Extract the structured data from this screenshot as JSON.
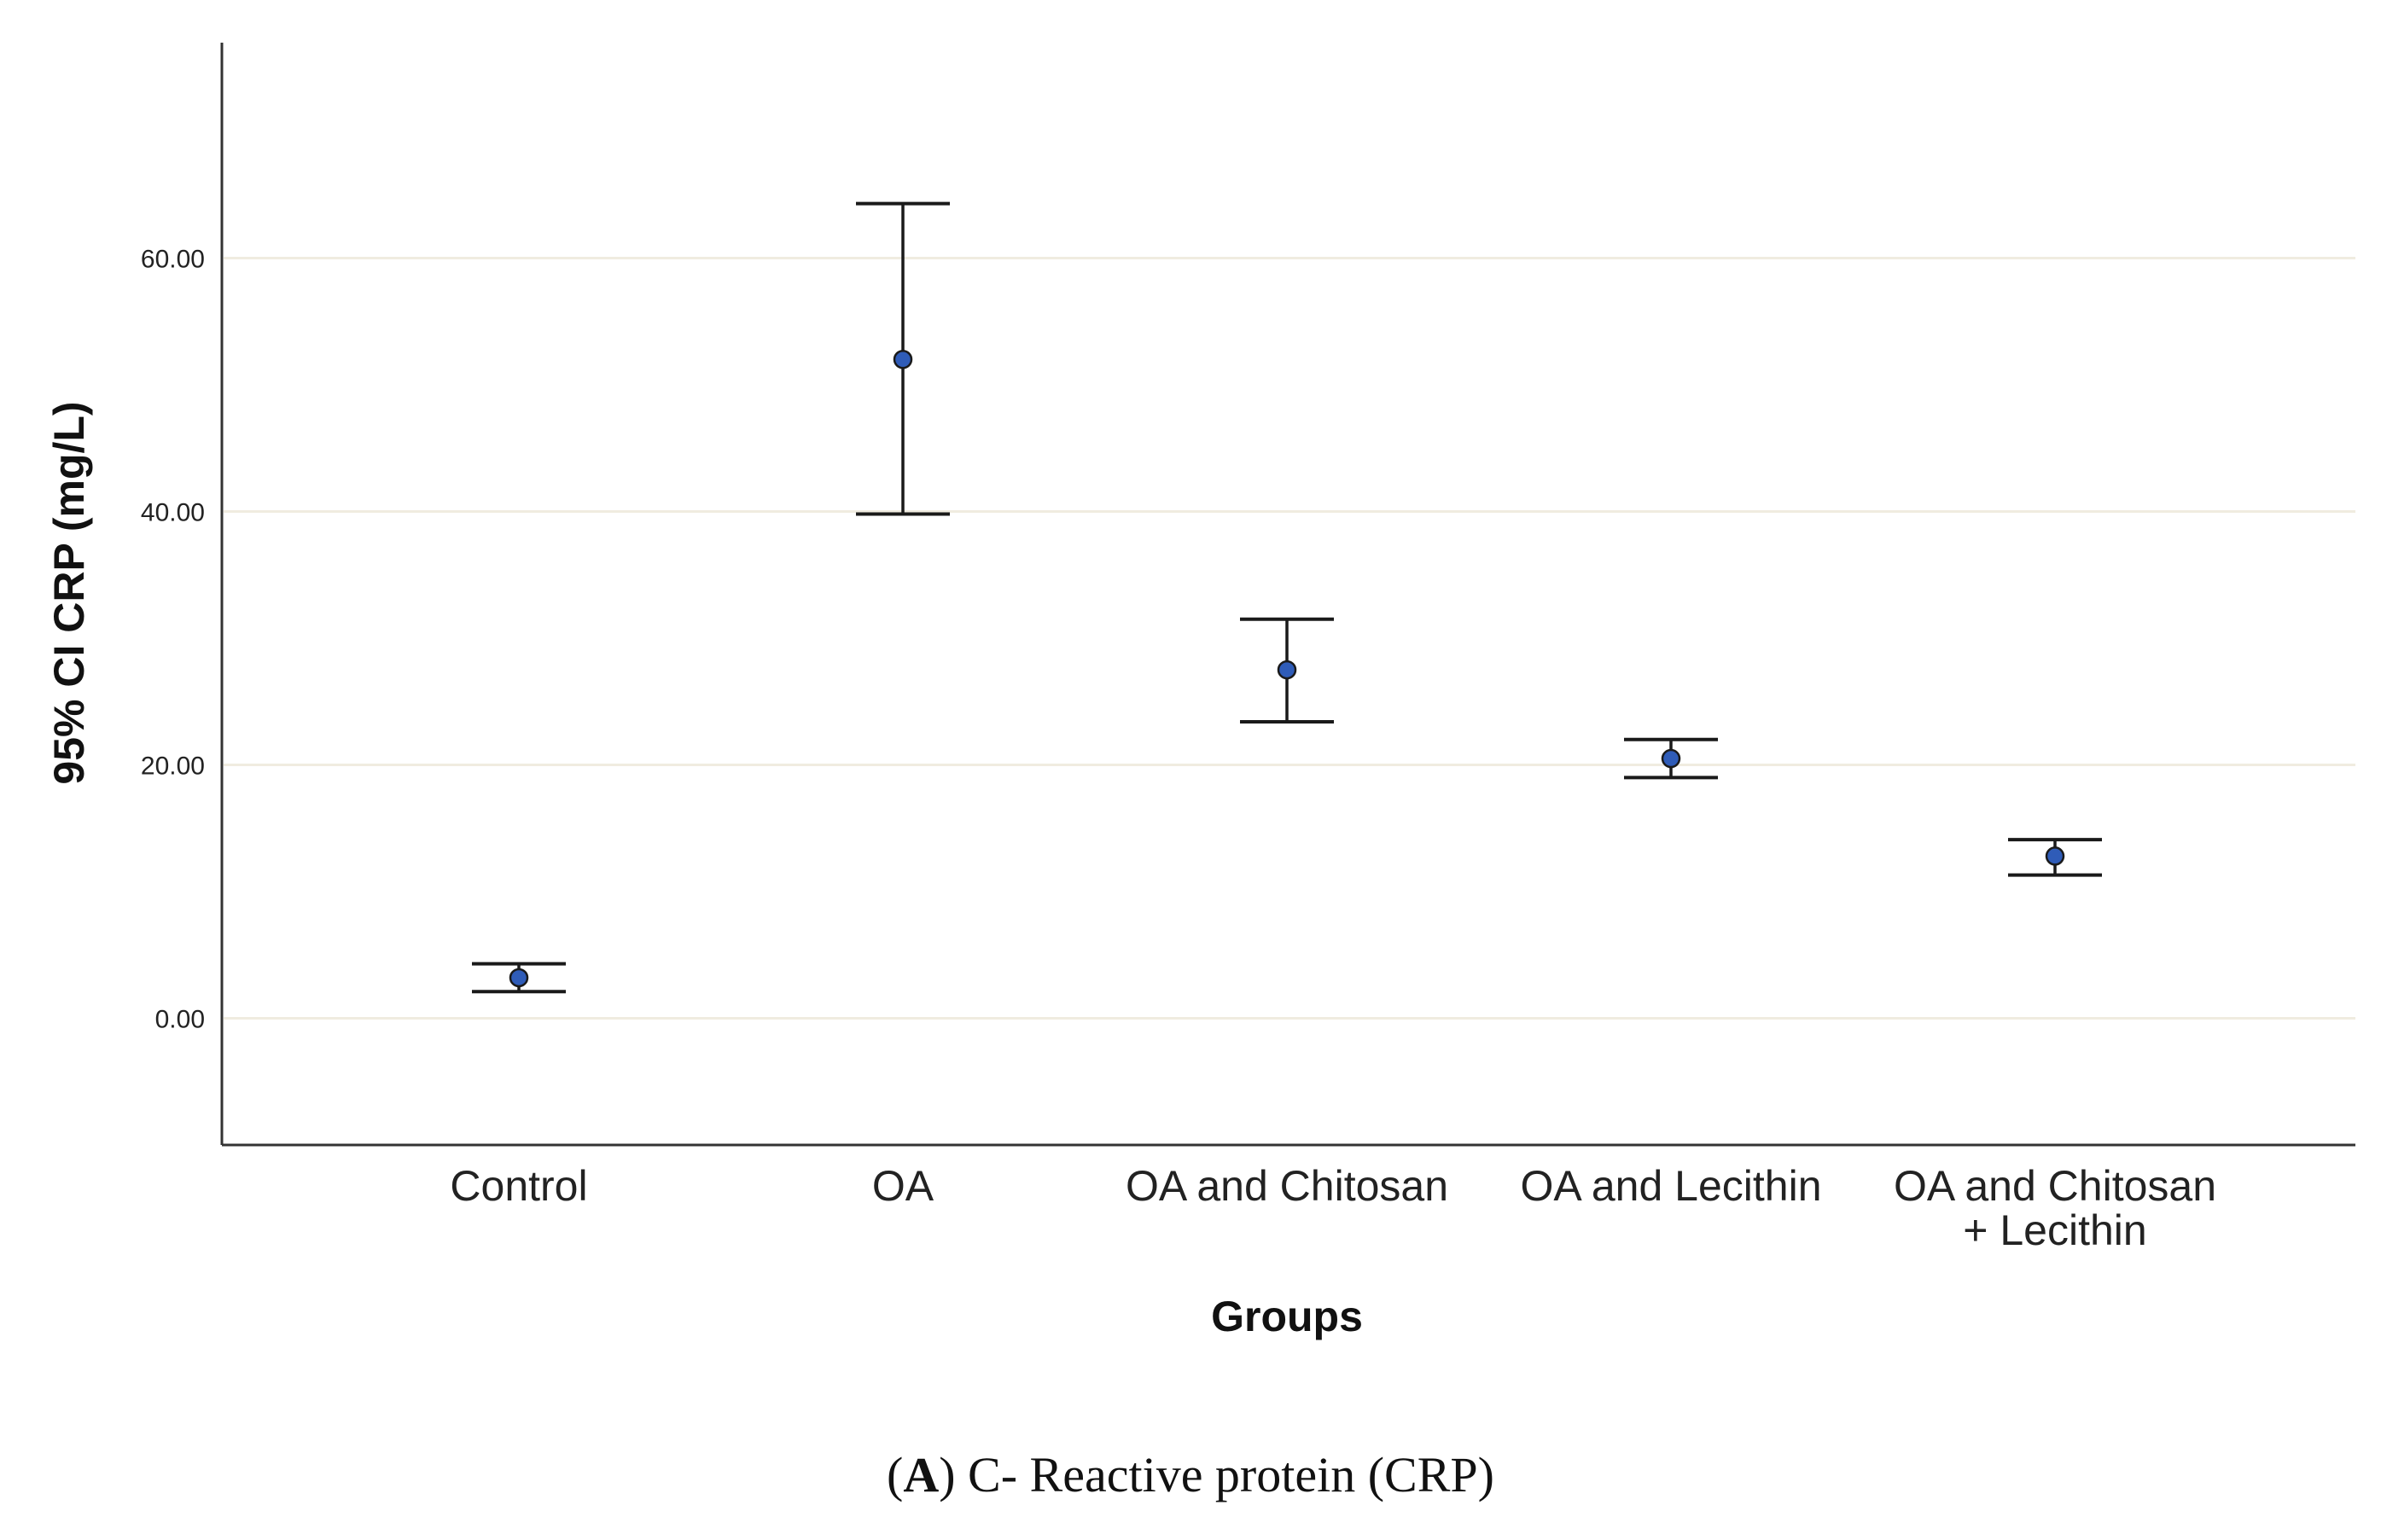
{
  "chart_data": {
    "type": "errorbar",
    "title": "",
    "xlabel": "Groups",
    "ylabel": "95% CI CRP (mg/L)",
    "ylim": [
      -10,
      77
    ],
    "yticks": [
      0,
      20,
      40,
      60
    ],
    "ytick_labels": [
      "0.00",
      "20.00",
      "40.00",
      "60.00"
    ],
    "grid": "horizontal",
    "categories": [
      [
        "Control"
      ],
      [
        "OA"
      ],
      [
        "OA and Chitosan"
      ],
      [
        "OA and Lecithin"
      ],
      [
        "OA and Chitosan",
        "+ Lecithin"
      ]
    ],
    "means": [
      3.2,
      52.0,
      27.5,
      20.5,
      12.8
    ],
    "ci_lower": [
      2.1,
      39.8,
      23.4,
      19.0,
      11.3
    ],
    "ci_upper": [
      4.3,
      64.3,
      31.5,
      22.0,
      14.1
    ],
    "colors": {
      "marker_fill": "#2f5cb8",
      "marker_stroke": "#1a1a1a",
      "errorbar": "#1a1a1a",
      "grid": "#f0ece0",
      "axis": "#333333"
    }
  },
  "caption": {
    "label": "A",
    "text": "C- Reactive protein (CRP)"
  }
}
